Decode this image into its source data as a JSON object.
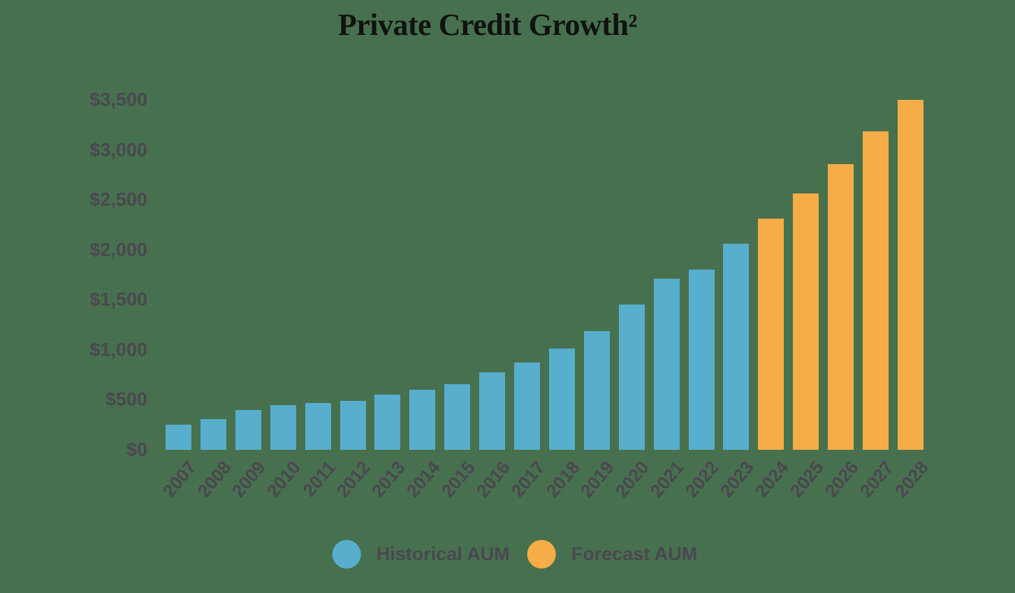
{
  "page": {
    "background_color": "#47714E",
    "axis_text_color": "#4B4751",
    "title_color": "#121212"
  },
  "chart_data": {
    "type": "bar",
    "title": "Private Credit Growth²",
    "categories": [
      "2007",
      "2008",
      "2009",
      "2010",
      "2011",
      "2012",
      "2013",
      "2014",
      "2015",
      "2016",
      "2017",
      "2018",
      "2019",
      "2020",
      "2021",
      "2022",
      "2023",
      "2024",
      "2025",
      "2026",
      "2027",
      "2028"
    ],
    "series": [
      {
        "name": "Historical AUM",
        "color": "#58AECD",
        "values": [
          250,
          305,
          395,
          450,
          465,
          490,
          550,
          600,
          660,
          775,
          875,
          1015,
          1185,
          1450,
          1715,
          1800,
          2060,
          null,
          null,
          null,
          null,
          null
        ]
      },
      {
        "name": "Forecast AUM",
        "color": "#F6AC47",
        "values": [
          null,
          null,
          null,
          null,
          null,
          null,
          null,
          null,
          null,
          null,
          null,
          null,
          null,
          null,
          null,
          null,
          null,
          2310,
          2565,
          2860,
          3185,
          3500
        ]
      }
    ],
    "ylim": [
      0,
      3500
    ],
    "ytick_step": 500,
    "ytick_values": [
      0,
      500,
      1000,
      1500,
      2000,
      2500,
      3000,
      3500
    ],
    "ytick_labels": [
      "$0",
      "$500",
      "$1,000",
      "$1,500",
      "$2,000",
      "$2,500",
      "$3,000",
      "$3,500"
    ],
    "grid": false,
    "legend_position": "bottom",
    "xtick_rotation_deg": -50
  }
}
